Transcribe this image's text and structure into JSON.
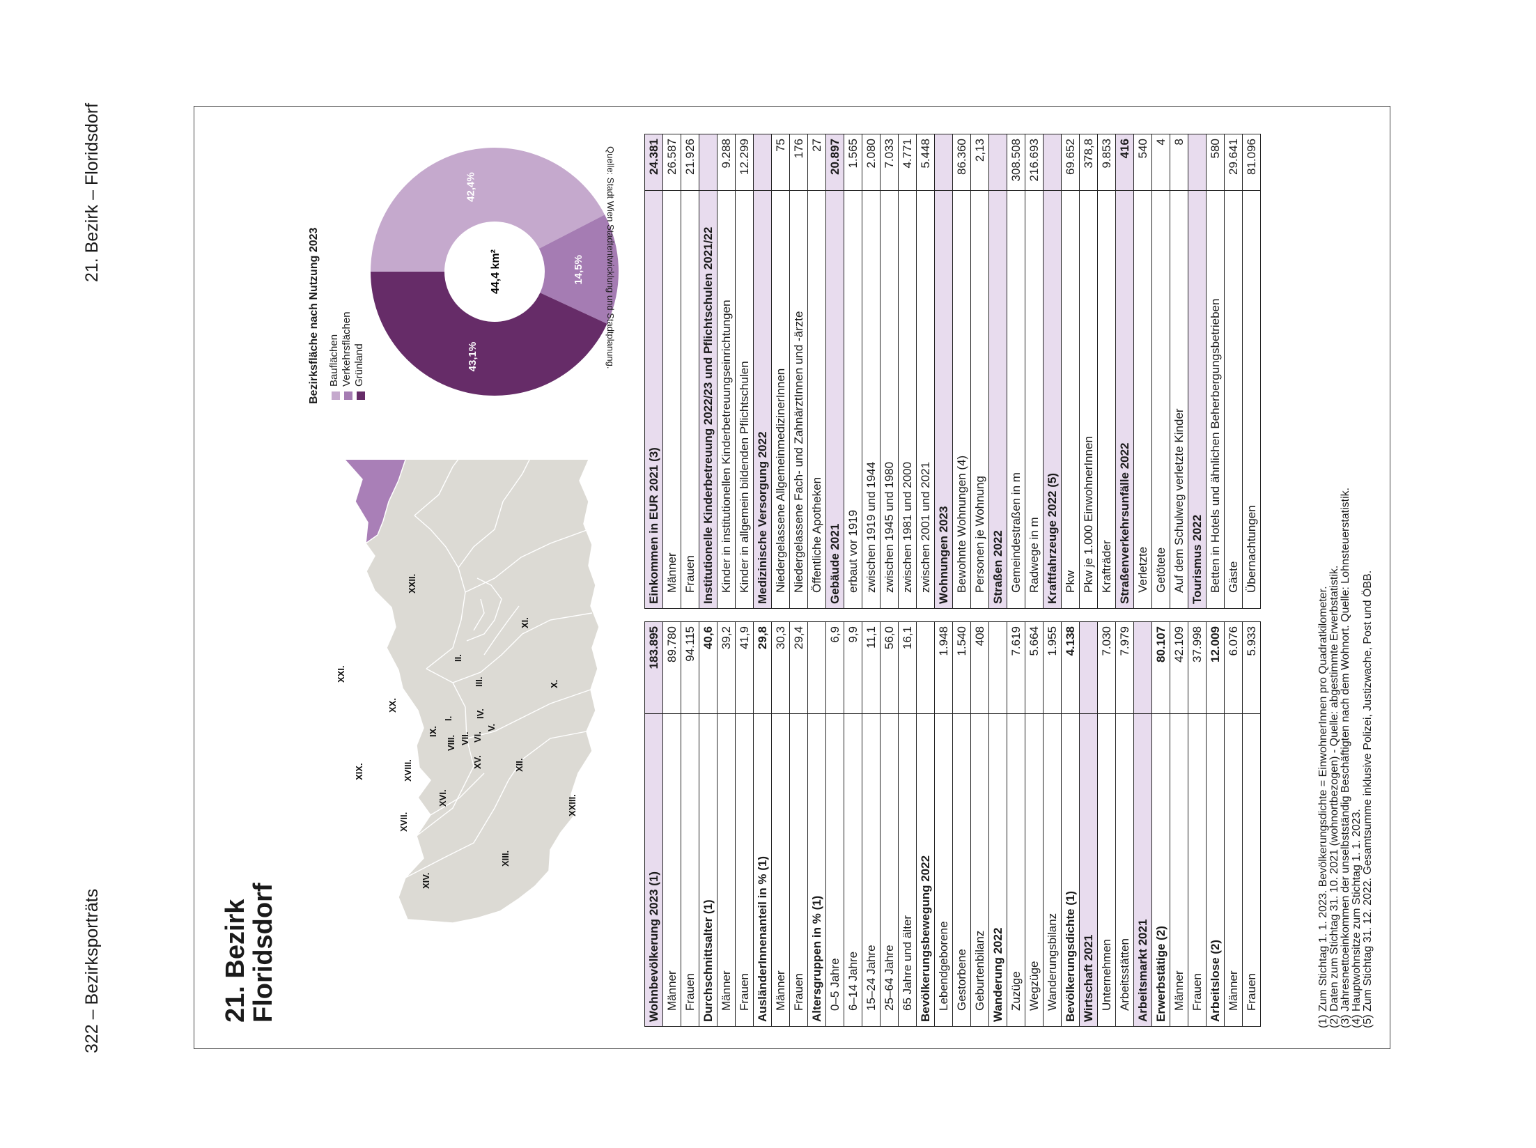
{
  "header": {
    "left": "322 – Bezirksporträts",
    "right": "21. Bezirk – Floridsdorf"
  },
  "title": {
    "line1": "21. Bezirk",
    "line2": "Floridsdorf"
  },
  "map": {
    "labels": [
      "I.",
      "II.",
      "III.",
      "IV.",
      "V.",
      "VI.",
      "VII.",
      "VIII.",
      "IX.",
      "X.",
      "XI.",
      "XII.",
      "XIII.",
      "XIV.",
      "XV.",
      "XVI.",
      "XVII.",
      "XVIII.",
      "XIX.",
      "XX.",
      "XXI.",
      "XXII.",
      "XXIII."
    ],
    "highlight": "XXI.",
    "highlight_color": "#a97fb7",
    "base_color": "#dcdad4"
  },
  "donut": {
    "title": "Bezirksfläche nach Nutzung 2023",
    "center": "44,4 km²",
    "legend": [
      "Bauflächen",
      "Verkehrsflächen",
      "Grünland"
    ],
    "slices": [
      {
        "name": "Bauflächen",
        "value": 42.4,
        "label": "42,4%",
        "color": "#c5a9cd"
      },
      {
        "name": "Verkehrsflächen",
        "value": 14.5,
        "label": "14,5%",
        "color": "#a57cb3"
      },
      {
        "name": "Grünland",
        "value": 43.1,
        "label": "43,1%",
        "color": "#662c68"
      }
    ],
    "source": "Quelle: Stadt Wien Stadtentwicklung und Stadtplanung."
  },
  "table1": [
    {
      "label": "Wohnbevölkerung 2023 (1)",
      "value": "183.895",
      "type": "hl"
    },
    {
      "label": "Männer",
      "value": "89.780",
      "type": "sub"
    },
    {
      "label": "Frauen",
      "value": "94.115",
      "type": "sub"
    },
    {
      "label": "Durchschnittsalter (1)",
      "value": "40,6",
      "type": "h"
    },
    {
      "label": "Männer",
      "value": "39,2",
      "type": "sub"
    },
    {
      "label": "Frauen",
      "value": "41,9",
      "type": "sub"
    },
    {
      "label": "AusländerInnenanteil in % (1)",
      "value": "29,8",
      "type": "h"
    },
    {
      "label": "Männer",
      "value": "30,3",
      "type": "sub"
    },
    {
      "label": "Frauen",
      "value": "29,4",
      "type": "sub"
    },
    {
      "label": "Altersgruppen in % (1)",
      "value": "",
      "type": "h"
    },
    {
      "label": "0–5 Jahre",
      "value": "6,9",
      "type": "sub"
    },
    {
      "label": "6–14 Jahre",
      "value": "9,9",
      "type": "sub"
    },
    {
      "label": "15–24 Jahre",
      "value": "11,1",
      "type": "sub"
    },
    {
      "label": "25–64 Jahre",
      "value": "56,0",
      "type": "sub"
    },
    {
      "label": "65 Jahre und älter",
      "value": "16,1",
      "type": "sub"
    },
    {
      "label": "Bevölkerungsbewegung 2022",
      "value": "",
      "type": "h"
    },
    {
      "label": "Lebendgeborene",
      "value": "1.948",
      "type": "sub"
    },
    {
      "label": "Gestorbene",
      "value": "1.540",
      "type": "sub"
    },
    {
      "label": "Geburtenbilanz",
      "value": "408",
      "type": "sub"
    },
    {
      "label": "Wanderung 2022",
      "value": "",
      "type": "h"
    },
    {
      "label": "Zuzüge",
      "value": "7.619",
      "type": "sub"
    },
    {
      "label": "Wegzüge",
      "value": "5.664",
      "type": "sub"
    },
    {
      "label": "Wanderungsbilanz",
      "value": "1.955",
      "type": "sub"
    },
    {
      "label": "Bevölkerungsdichte (1)",
      "value": "4.138",
      "type": "h"
    },
    {
      "label": "Wirtschaft 2021",
      "value": "",
      "type": "hl"
    },
    {
      "label": "Unternehmen",
      "value": "7.030",
      "type": "sub"
    },
    {
      "label": "Arbeitsstätten",
      "value": "7.979",
      "type": "sub"
    },
    {
      "label": "Arbeitsmarkt 2021",
      "value": "",
      "type": "hl"
    },
    {
      "label": "Erwerbstätige (2)",
      "value": "80.107",
      "type": "h"
    },
    {
      "label": "Männer",
      "value": "42.109",
      "type": "sub"
    },
    {
      "label": "Frauen",
      "value": "37.998",
      "type": "sub"
    },
    {
      "label": "Arbeitslose (2)",
      "value": "12.009",
      "type": "h"
    },
    {
      "label": "Männer",
      "value": "6.076",
      "type": "sub"
    },
    {
      "label": "Frauen",
      "value": "5.933",
      "type": "sub"
    }
  ],
  "table2": [
    {
      "label": "Einkommen in EUR 2021 (3)",
      "value": "24.381",
      "type": "hl"
    },
    {
      "label": "Männer",
      "value": "26.587",
      "type": "sub"
    },
    {
      "label": "Frauen",
      "value": "21.926",
      "type": "sub"
    },
    {
      "label": "Institutionelle Kinderbetreuung 2022/23 und Pflichtschulen 2021/22",
      "value": "",
      "type": "hl"
    },
    {
      "label": "Kinder in institutionellen Kinderbetreuungseinrichtungen",
      "value": "9.288",
      "type": "sub"
    },
    {
      "label": "Kinder in allgemein bildenden Pflichtschulen",
      "value": "12.299",
      "type": "sub"
    },
    {
      "label": "Medizinische Versorgung 2022",
      "value": "",
      "type": "hl"
    },
    {
      "label": "Niedergelassene AllgemeinmedizinerInnen",
      "value": "75",
      "type": "sub"
    },
    {
      "label": "Niedergelassene Fach- und ZahnärztInnen und -ärzte",
      "value": "176",
      "type": "sub"
    },
    {
      "label": "Öffentliche Apotheken",
      "value": "27",
      "type": "sub"
    },
    {
      "label": "Gebäude 2021",
      "value": "20.897",
      "type": "hl"
    },
    {
      "label": "erbaut vor 1919",
      "value": "1.565",
      "type": "sub"
    },
    {
      "label": "zwischen 1919 und 1944",
      "value": "2.080",
      "type": "sub"
    },
    {
      "label": "zwischen 1945 und 1980",
      "value": "7.033",
      "type": "sub"
    },
    {
      "label": "zwischen 1981 und 2000",
      "value": "4.771",
      "type": "sub"
    },
    {
      "label": "zwischen 2001 und 2021",
      "value": "5.448",
      "type": "sub"
    },
    {
      "label": "Wohnungen 2023",
      "value": "",
      "type": "hl"
    },
    {
      "label": "Bewohnte Wohnungen (4)",
      "value": "86.360",
      "type": "sub"
    },
    {
      "label": "Personen je Wohnung",
      "value": "2,13",
      "type": "sub"
    },
    {
      "label": "Straßen 2022",
      "value": "",
      "type": "hl"
    },
    {
      "label": "Gemeindestraßen in m",
      "value": "308.508",
      "type": "sub"
    },
    {
      "label": "Radwege in m",
      "value": "216.693",
      "type": "sub"
    },
    {
      "label": "Kraftfahrzeuge 2022 (5)",
      "value": "",
      "type": "hl"
    },
    {
      "label": "Pkw",
      "value": "69.652",
      "type": "sub"
    },
    {
      "label": "Pkw je 1.000 EinwohnerInnen",
      "value": "378,8",
      "type": "sub"
    },
    {
      "label": "Krafträder",
      "value": "9.853",
      "type": "sub"
    },
    {
      "label": "Straßenverkehrsunfälle 2022",
      "value": "416",
      "type": "hl"
    },
    {
      "label": "Verletzte",
      "value": "540",
      "type": "sub"
    },
    {
      "label": "Getötete",
      "value": "4",
      "type": "sub"
    },
    {
      "label": "Auf dem Schulweg verletzte Kinder",
      "value": "8",
      "type": "sub"
    },
    {
      "label": "Tourismus 2022",
      "value": "",
      "type": "hl"
    },
    {
      "label": "Betten in Hotels und ähnlichen Beherbergungsbetrieben",
      "value": "580",
      "type": "sub"
    },
    {
      "label": "Gäste",
      "value": "29.641",
      "type": "sub"
    },
    {
      "label": "Übernachtungen",
      "value": "81.096",
      "type": "sub"
    }
  ],
  "footnotes": [
    "(1) Zum Stichtag 1. 1. 2023. Bevölkerungsdichte = EinwohnerInnen pro Quadratkilometer.",
    "(2) Daten zum Stichtag 31. 10. 2021 (wohnortbezogen) - Quelle: abgestimmte Erwerbstatistik.",
    "(3) Jahresnettoeinkommen der unselbstständig Beschäftigten nach dem Wohnort. Quelle: Lohnsteuerstatistik.",
    "(4) Hauptwohnsitze zum Stichtag 1. 1. 2023.",
    "(5) Zum Stichtag 31. 12. 2022. Gesamtsumme inklusive Polizei, Justizwache, Post und ÖBB."
  ]
}
